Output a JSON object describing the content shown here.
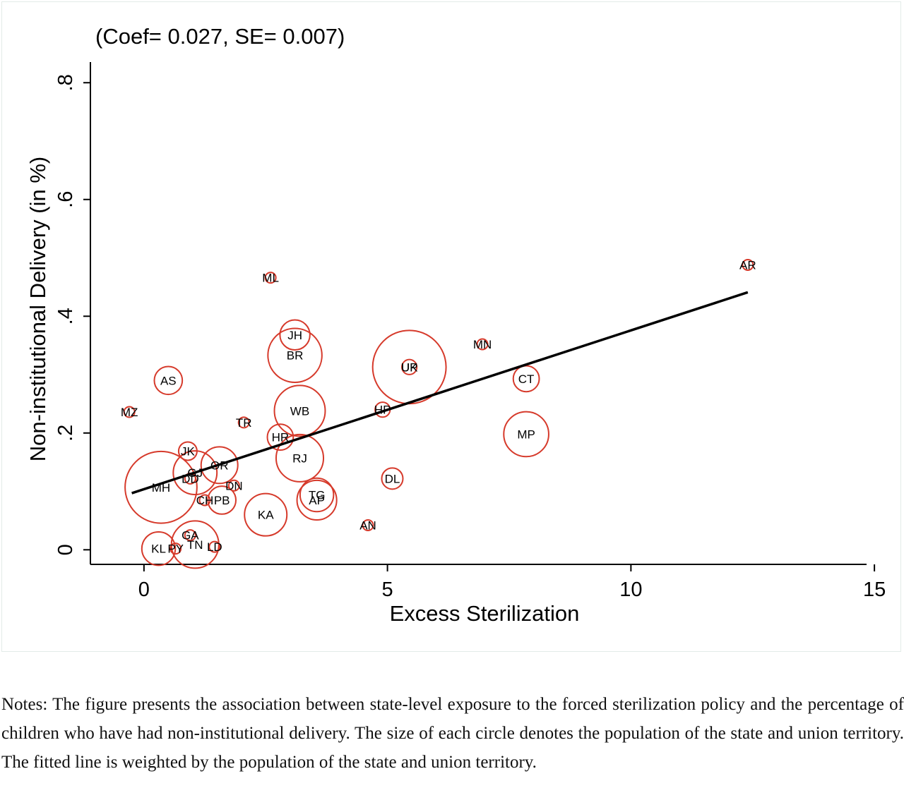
{
  "chart_data": {
    "type": "scatter",
    "title": "(Coef= 0.027, SE= 0.007)",
    "xlabel": "Excess Sterilization",
    "ylabel": "Non-institutional Delivery (in %)",
    "xlim": [
      -1.1,
      15.1
    ],
    "ylim": [
      -0.025,
      0.845
    ],
    "x_ticks": [
      {
        "value": 0,
        "label": "0"
      },
      {
        "value": 5,
        "label": "5"
      },
      {
        "value": 10,
        "label": "10"
      },
      {
        "value": 15,
        "label": "15"
      }
    ],
    "y_ticks": [
      {
        "value": 0,
        "label": "0"
      },
      {
        "value": 0.2,
        "label": ".2"
      },
      {
        "value": 0.4,
        "label": ".4"
      },
      {
        "value": 0.6,
        "label": ".6"
      },
      {
        "value": 0.8,
        "label": ".8"
      }
    ],
    "grid": false,
    "marker_color": "#d63a2b",
    "line_color": "#000000",
    "fitted_line": {
      "x": [
        -0.25,
        12.4
      ],
      "y": [
        0.097,
        0.441
      ]
    },
    "points": [
      {
        "label": "AR",
        "x": 12.4,
        "y": 0.488,
        "size": 1
      },
      {
        "label": "ML",
        "x": 2.6,
        "y": 0.466,
        "size": 1
      },
      {
        "label": "MN",
        "x": 6.95,
        "y": 0.352,
        "size": 1
      },
      {
        "label": "JH",
        "x": 3.1,
        "y": 0.368,
        "size": 8
      },
      {
        "label": "BR",
        "x": 3.1,
        "y": 0.333,
        "size": 26
      },
      {
        "label": "UP",
        "x": 5.45,
        "y": 0.313,
        "size": 48
      },
      {
        "label": "UK",
        "x": 5.45,
        "y": 0.313,
        "size": 2
      },
      {
        "label": "CT",
        "x": 7.85,
        "y": 0.293,
        "size": 6
      },
      {
        "label": "AS",
        "x": 0.5,
        "y": 0.29,
        "size": 7
      },
      {
        "label": "MZ",
        "x": -0.3,
        "y": 0.236,
        "size": 1
      },
      {
        "label": "WB",
        "x": 3.2,
        "y": 0.238,
        "size": 23
      },
      {
        "label": "HP",
        "x": 4.9,
        "y": 0.24,
        "size": 2
      },
      {
        "label": "TR",
        "x": 2.05,
        "y": 0.218,
        "size": 1
      },
      {
        "label": "MP",
        "x": 7.85,
        "y": 0.198,
        "size": 18
      },
      {
        "label": "HR",
        "x": 2.8,
        "y": 0.193,
        "size": 6
      },
      {
        "label": "JK",
        "x": 0.9,
        "y": 0.169,
        "size": 3
      },
      {
        "label": "RJ",
        "x": 3.2,
        "y": 0.157,
        "size": 20
      },
      {
        "label": "OR",
        "x": 1.55,
        "y": 0.145,
        "size": 12
      },
      {
        "label": "GJ",
        "x": 1.05,
        "y": 0.132,
        "size": 17
      },
      {
        "label": "DD",
        "x": 0.95,
        "y": 0.122,
        "size": 1
      },
      {
        "label": "DL",
        "x": 5.1,
        "y": 0.122,
        "size": 4
      },
      {
        "label": "MH",
        "x": 0.35,
        "y": 0.107,
        "size": 46
      },
      {
        "label": "DN",
        "x": 1.85,
        "y": 0.11,
        "size": 1
      },
      {
        "label": "TG",
        "x": 3.55,
        "y": 0.094,
        "size": 10
      },
      {
        "label": "AP",
        "x": 3.55,
        "y": 0.085,
        "size": 14
      },
      {
        "label": "CH",
        "x": 1.25,
        "y": 0.085,
        "size": 1
      },
      {
        "label": "PB",
        "x": 1.6,
        "y": 0.085,
        "size": 7
      },
      {
        "label": "KA",
        "x": 2.5,
        "y": 0.06,
        "size": 16
      },
      {
        "label": "AN",
        "x": 4.6,
        "y": 0.042,
        "size": 1
      },
      {
        "label": "GA",
        "x": 0.95,
        "y": 0.025,
        "size": 1
      },
      {
        "label": "TN",
        "x": 1.05,
        "y": 0.009,
        "size": 20
      },
      {
        "label": "LD",
        "x": 1.45,
        "y": 0.005,
        "size": 1
      },
      {
        "label": "KL",
        "x": 0.3,
        "y": 0.002,
        "size": 10
      },
      {
        "label": "PY",
        "x": 0.65,
        "y": 0.002,
        "size": 1
      }
    ]
  },
  "notes": "Notes: The figure presents the association between state-level exposure to the forced sterilization policy and the percentage of children who have had non-institutional delivery. The size of each circle denotes the population of the state and union territory. The fitted line is weighted by the population of the state and union territory."
}
